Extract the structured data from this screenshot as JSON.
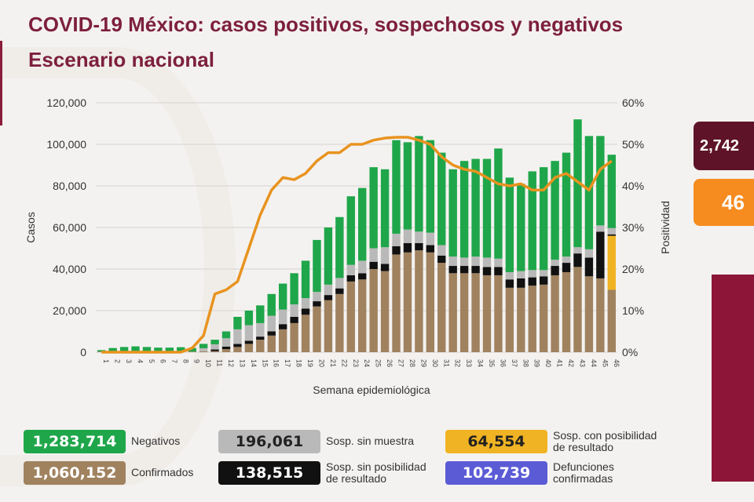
{
  "header": {
    "title": "COVID-19 México: casos positivos, sospechosos y negativos",
    "subtitle": "Escenario nacional"
  },
  "chart_data": {
    "type": "bar",
    "stacked": true,
    "xlabel": "Semana epidemiológica",
    "ylabel": "Casos",
    "y2label": "Positividad",
    "ylim": [
      0,
      120000
    ],
    "y2lim": [
      0,
      60
    ],
    "yticks": [
      "0",
      "20,000",
      "40,000",
      "60,000",
      "80,000",
      "100,000",
      "120,000"
    ],
    "y2ticks": [
      "0%",
      "10%",
      "20%",
      "30%",
      "40%",
      "50%",
      "60%"
    ],
    "grid": true,
    "categories": [
      "1",
      "2",
      "3",
      "4",
      "5",
      "6",
      "7",
      "8",
      "9",
      "10",
      "11",
      "12",
      "13",
      "14",
      "15",
      "16",
      "17",
      "18",
      "19",
      "20",
      "21",
      "22",
      "23",
      "24",
      "25",
      "26",
      "27",
      "28",
      "29",
      "30",
      "31",
      "32",
      "33",
      "34",
      "35",
      "36",
      "37",
      "38",
      "39",
      "40",
      "41",
      "42",
      "43",
      "44",
      "45",
      "46"
    ],
    "series": [
      {
        "name": "Confirmados",
        "color": "#a0825f",
        "values": [
          300,
          400,
          500,
          500,
          400,
          300,
          300,
          300,
          300,
          400,
          500,
          1500,
          2500,
          4000,
          6000,
          8000,
          11000,
          14000,
          18000,
          22000,
          25000,
          28000,
          34000,
          35000,
          40000,
          39000,
          47000,
          48000,
          49000,
          48000,
          43000,
          38000,
          38000,
          38000,
          37000,
          37000,
          31000,
          31000,
          32000,
          32500,
          37000,
          38500,
          41000,
          36500,
          35500,
          30000
        ]
      },
      {
        "name": "Sosp. con posibilidad de resultado",
        "color": "#f0b323",
        "values": [
          0,
          0,
          0,
          0,
          0,
          0,
          0,
          0,
          0,
          0,
          0,
          0,
          0,
          0,
          0,
          0,
          0,
          0,
          0,
          0,
          0,
          0,
          0,
          0,
          0,
          0,
          0,
          0,
          0,
          0,
          0,
          0,
          0,
          0,
          0,
          0,
          0,
          0,
          0,
          0,
          0,
          0,
          0,
          0,
          0,
          26000
        ]
      },
      {
        "name": "Sosp. sin posibilidad de resultado",
        "color": "#111111",
        "values": [
          0,
          0,
          0,
          0,
          0,
          0,
          0,
          0,
          0,
          0,
          800,
          1200,
          1500,
          1500,
          1500,
          2000,
          2500,
          3000,
          3000,
          2500,
          2500,
          2700,
          3000,
          3000,
          3500,
          3500,
          4000,
          4500,
          3500,
          3500,
          3500,
          3500,
          3500,
          3500,
          4000,
          4000,
          4000,
          4500,
          4000,
          4000,
          4500,
          4500,
          6500,
          9000,
          22500,
          700
        ]
      },
      {
        "name": "Sosp. sin muestra",
        "color": "#b9b9b9",
        "values": [
          0,
          0,
          0,
          0,
          0,
          0,
          0,
          0,
          0,
          1500,
          2500,
          4000,
          7000,
          7500,
          6500,
          7500,
          7000,
          6000,
          5000,
          4500,
          5000,
          5000,
          5000,
          6000,
          6500,
          8000,
          6000,
          6500,
          5500,
          6000,
          5000,
          4500,
          4000,
          4500,
          4500,
          4000,
          3500,
          3500,
          3500,
          3000,
          3000,
          3000,
          3000,
          4000,
          3000,
          3000
        ]
      },
      {
        "name": "Negativos",
        "color": "#1fa64a",
        "values": [
          700,
          1600,
          2000,
          2300,
          2100,
          1900,
          1900,
          2100,
          1700,
          2100,
          2200,
          3300,
          6000,
          7000,
          8500,
          10500,
          12500,
          15000,
          18000,
          25000,
          27500,
          29300,
          33000,
          35000,
          39000,
          37500,
          45000,
          42000,
          46000,
          44500,
          44500,
          42000,
          46500,
          47000,
          47500,
          53000,
          45500,
          42000,
          47500,
          49500,
          47500,
          50000,
          61500,
          54500,
          43000,
          35300
        ]
      }
    ],
    "line": {
      "name": "Positividad",
      "color": "#e8931f",
      "axis": "right",
      "values": [
        0,
        0,
        0,
        0,
        0,
        0,
        0,
        0,
        1,
        4,
        14,
        15,
        17,
        25,
        33,
        39,
        42,
        41.5,
        43,
        46,
        48,
        48,
        50,
        50,
        51,
        51.5,
        51.7,
        51.7,
        51,
        50,
        47,
        45,
        44,
        43.5,
        42,
        40.5,
        40,
        40.5,
        39,
        39,
        42,
        43,
        41,
        39,
        44,
        46
      ]
    }
  },
  "legend": [
    {
      "value": "1,283,714",
      "label": "Negativos",
      "color": "#1fa64a",
      "text": "#ffffff"
    },
    {
      "value": "1,060,152",
      "label": "Confirmados",
      "color": "#a0825f",
      "text": "#ffffff"
    },
    {
      "value": "196,061",
      "label": "Sosp. sin muestra",
      "color": "#b9b9b9",
      "text": "#222222"
    },
    {
      "value": "138,515",
      "label": "Sosp. sin posibilidad de resultado",
      "color": "#111111",
      "text": "#ffffff"
    },
    {
      "value": "64,554",
      "label": "Sosp. con posibilidad de resultado",
      "color": "#f0b323",
      "text": "#222222"
    },
    {
      "value": "102,739",
      "label": "Defunciones confirmadas",
      "color": "#5b5bd6",
      "text": "#ffffff"
    }
  ],
  "side": {
    "total_value": "2,742",
    "positivity_value": "46",
    "total_color": "#5e1328",
    "positivity_color": "#f68b1f",
    "panel_color": "#8c1538"
  }
}
